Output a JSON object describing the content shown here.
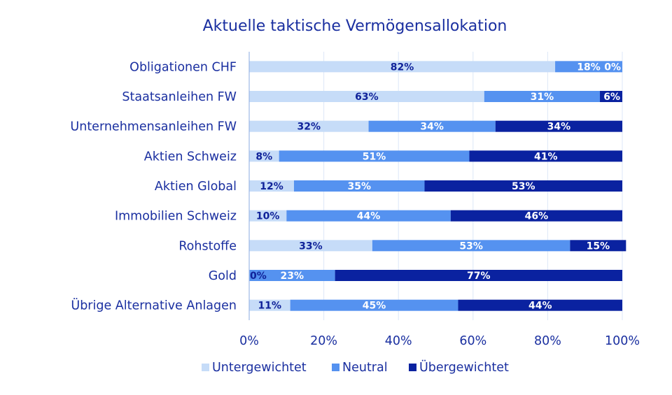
{
  "chart_data": {
    "type": "bar",
    "orientation": "horizontal",
    "stacked": true,
    "title": "Aktuelle taktische Vermögensallokation",
    "xlabel": "",
    "ylabel": "",
    "xlim": [
      0,
      100
    ],
    "x_ticks": [
      "0%",
      "20%",
      "40%",
      "60%",
      "80%",
      "100%"
    ],
    "grid": true,
    "legend_position": "bottom",
    "categories": [
      "Obligationen CHF",
      "Staatsanleihen FW",
      "Unternehmensanleihen FW",
      "Aktien Schweiz",
      "Aktien Global",
      "Immobilien Schweiz",
      "Rohstoffe",
      "Gold",
      "Übrige Alternative Anlagen"
    ],
    "series": [
      {
        "name": "Untergewichtet",
        "color": "#c6dcf8",
        "label_color": "#10239a",
        "values": [
          82,
          63,
          32,
          8,
          12,
          10,
          33,
          0,
          11
        ],
        "labels": [
          "82%",
          "63%",
          "32%",
          "8%",
          "12%",
          "10%",
          "33%",
          "0%",
          "11%"
        ]
      },
      {
        "name": "Neutral",
        "color": "#5592f0",
        "label_color": "#ffffff",
        "values": [
          18,
          31,
          34,
          51,
          35,
          44,
          53,
          23,
          45
        ],
        "labels": [
          "18%",
          "31%",
          "34%",
          "51%",
          "35%",
          "44%",
          "53%",
          "23%",
          "45%"
        ]
      },
      {
        "name": "Übergewichtet",
        "color": "#0a22a0",
        "label_color": "#ffffff",
        "values": [
          0,
          6,
          34,
          41,
          53,
          46,
          15,
          77,
          44
        ],
        "labels": [
          "0%",
          "6%",
          "34%",
          "41%",
          "53%",
          "46%",
          "15%",
          "77%",
          "44%"
        ]
      }
    ]
  }
}
